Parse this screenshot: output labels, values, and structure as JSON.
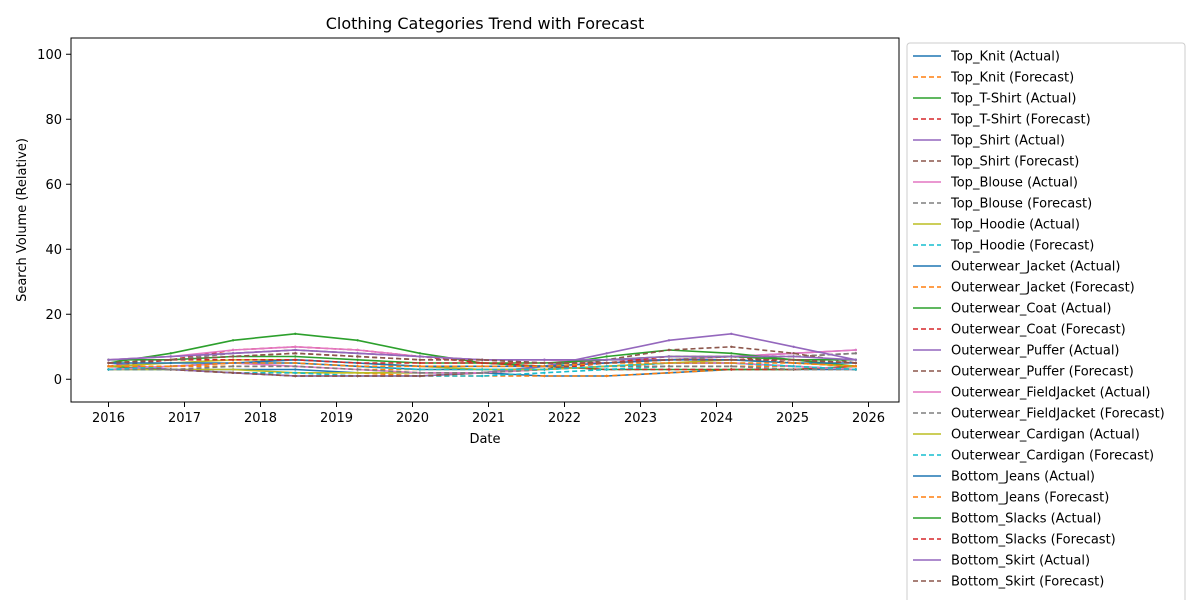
{
  "chart_data": {
    "type": "line",
    "title": "Clothing Categories Trend with Forecast",
    "xlabel": "Date",
    "ylabel": "Search Volume (Relative)",
    "x_ticks": [
      "2016",
      "2017",
      "2018",
      "2019",
      "2020",
      "2021",
      "2022",
      "2023",
      "2024",
      "2025",
      "2026"
    ],
    "y_ticks": [
      0,
      20,
      40,
      60,
      80,
      100
    ],
    "xlim": [
      "2015-06",
      "2026-02"
    ],
    "ylim": [
      -7,
      105
    ],
    "grid": false,
    "legend_placement": "outside right",
    "colors": {
      "blue": "#1f77b4",
      "orange": "#ff7f0e",
      "green": "#2ca02c",
      "red": "#d62728",
      "purple": "#9467bd",
      "brown": "#8c564b",
      "pink": "#e377c2",
      "gray": "#7f7f7f",
      "olive": "#bcbd22",
      "cyan": "#17becf"
    },
    "actual_period": [
      "2016-01",
      "2025-11"
    ],
    "forecast_period": [
      "2016-01",
      "2025-11"
    ],
    "series": [
      {
        "name": "Top_Knit (Actual)",
        "color": "#1f77b4",
        "style": "solid",
        "values": [
          3,
          3,
          3,
          3,
          2,
          2,
          2,
          1,
          1,
          2,
          3,
          3,
          3
        ]
      },
      {
        "name": "Top_Knit (Forecast)",
        "color": "#ff7f0e",
        "style": "dashed",
        "values": [
          3,
          3,
          2,
          2,
          2,
          1,
          1,
          1,
          1,
          2,
          3,
          3,
          3
        ]
      },
      {
        "name": "Top_T-Shirt (Actual)",
        "color": "#2ca02c",
        "style": "solid",
        "values": [
          5,
          8,
          12,
          14,
          12,
          8,
          5,
          4,
          3,
          3,
          3,
          3,
          4
        ]
      },
      {
        "name": "Top_T-Shirt (Forecast)",
        "color": "#d62728",
        "style": "dashed",
        "values": [
          4,
          6,
          9,
          10,
          9,
          7,
          5,
          4,
          3,
          3,
          3,
          3,
          4
        ]
      },
      {
        "name": "Top_Shirt (Actual)",
        "color": "#9467bd",
        "style": "solid",
        "values": [
          6,
          7,
          8,
          9,
          8,
          7,
          6,
          6,
          6,
          6,
          7,
          8,
          9
        ]
      },
      {
        "name": "Top_Shirt (Forecast)",
        "color": "#8c564b",
        "style": "dashed",
        "values": [
          5,
          6,
          7,
          8,
          7,
          6,
          6,
          5,
          5,
          6,
          7,
          7,
          8
        ]
      },
      {
        "name": "Top_Blouse (Actual)",
        "color": "#e377c2",
        "style": "solid",
        "values": [
          6,
          7,
          9,
          10,
          9,
          7,
          6,
          6,
          5,
          6,
          7,
          8,
          9
        ]
      },
      {
        "name": "Top_Blouse (Forecast)",
        "color": "#7f7f7f",
        "style": "dashed",
        "values": [
          5,
          6,
          8,
          9,
          8,
          7,
          6,
          5,
          5,
          6,
          7,
          7,
          8
        ]
      },
      {
        "name": "Top_Hoodie (Actual)",
        "color": "#bcbd22",
        "style": "solid",
        "values": [
          3,
          3,
          3,
          2,
          2,
          2,
          2,
          3,
          4,
          5,
          5,
          4,
          3
        ]
      },
      {
        "name": "Top_Hoodie (Forecast)",
        "color": "#17becf",
        "style": "dashed",
        "values": [
          3,
          3,
          2,
          2,
          1,
          1,
          1,
          2,
          3,
          4,
          4,
          4,
          3
        ]
      },
      {
        "name": "Outerwear_Jacket (Actual)",
        "color": "#1f77b4",
        "style": "solid",
        "values": [
          3,
          4,
          5,
          5,
          4,
          3,
          3,
          3,
          4,
          5,
          5,
          4,
          3
        ]
      },
      {
        "name": "Outerwear_Jacket (Forecast)",
        "color": "#ff7f0e",
        "style": "dashed",
        "values": [
          3,
          4,
          4,
          4,
          3,
          3,
          3,
          3,
          4,
          4,
          4,
          4,
          3
        ]
      },
      {
        "name": "Outerwear_Coat (Actual)",
        "color": "#2ca02c",
        "style": "solid",
        "values": [
          4,
          3,
          2,
          1,
          1,
          1,
          2,
          4,
          7,
          9,
          8,
          6,
          4
        ]
      },
      {
        "name": "Outerwear_Coat (Forecast)",
        "color": "#d62728",
        "style": "dashed",
        "values": [
          4,
          3,
          2,
          1,
          1,
          1,
          2,
          3,
          5,
          7,
          7,
          5,
          4
        ]
      },
      {
        "name": "Outerwear_Puffer (Actual)",
        "color": "#9467bd",
        "style": "solid",
        "values": [
          5,
          3,
          2,
          1,
          1,
          1,
          2,
          4,
          8,
          12,
          14,
          10,
          6
        ]
      },
      {
        "name": "Outerwear_Puffer (Forecast)",
        "color": "#8c564b",
        "style": "dashed",
        "values": [
          4,
          3,
          2,
          1,
          1,
          1,
          2,
          3,
          6,
          9,
          10,
          8,
          5
        ]
      },
      {
        "name": "Outerwear_FieldJacket (Actual)",
        "color": "#e377c2",
        "style": "solid",
        "values": [
          3,
          4,
          5,
          4,
          3,
          2,
          2,
          3,
          4,
          5,
          5,
          4,
          3
        ]
      },
      {
        "name": "Outerwear_FieldJacket (Forecast)",
        "color": "#7f7f7f",
        "style": "dashed",
        "values": [
          3,
          3,
          4,
          4,
          3,
          2,
          2,
          3,
          4,
          4,
          4,
          3,
          3
        ]
      },
      {
        "name": "Outerwear_Cardigan (Actual)",
        "color": "#bcbd22",
        "style": "solid",
        "values": [
          4,
          5,
          6,
          6,
          5,
          4,
          3,
          3,
          4,
          5,
          6,
          5,
          4
        ]
      },
      {
        "name": "Outerwear_Cardigan (Forecast)",
        "color": "#17becf",
        "style": "dashed",
        "values": [
          3,
          4,
          5,
          5,
          4,
          3,
          3,
          3,
          4,
          5,
          5,
          4,
          3
        ]
      },
      {
        "name": "Bottom_Jeans (Actual)",
        "color": "#1f77b4",
        "style": "solid",
        "values": [
          5,
          5,
          5,
          6,
          5,
          4,
          4,
          4,
          5,
          6,
          6,
          5,
          5
        ]
      },
      {
        "name": "Bottom_Jeans (Forecast)",
        "color": "#ff7f0e",
        "style": "dashed",
        "values": [
          4,
          4,
          5,
          5,
          4,
          4,
          4,
          4,
          5,
          5,
          5,
          5,
          4
        ]
      },
      {
        "name": "Bottom_Slacks (Actual)",
        "color": "#2ca02c",
        "style": "solid",
        "values": [
          6,
          6,
          7,
          7,
          6,
          5,
          5,
          5,
          6,
          7,
          7,
          6,
          6
        ]
      },
      {
        "name": "Bottom_Slacks (Forecast)",
        "color": "#d62728",
        "style": "dashed",
        "values": [
          5,
          6,
          6,
          6,
          5,
          5,
          5,
          5,
          5,
          6,
          6,
          6,
          5
        ]
      },
      {
        "name": "Bottom_Skirt (Actual)",
        "color": "#9467bd",
        "style": "solid",
        "values": [
          6,
          7,
          8,
          9,
          8,
          7,
          6,
          6,
          6,
          7,
          7,
          7,
          6
        ]
      },
      {
        "name": "Bottom_Skirt (Forecast)",
        "color": "#8c564b",
        "style": "dashed",
        "values": [
          5,
          6,
          7,
          8,
          7,
          6,
          6,
          5,
          5,
          6,
          6,
          6,
          5
        ]
      }
    ]
  }
}
